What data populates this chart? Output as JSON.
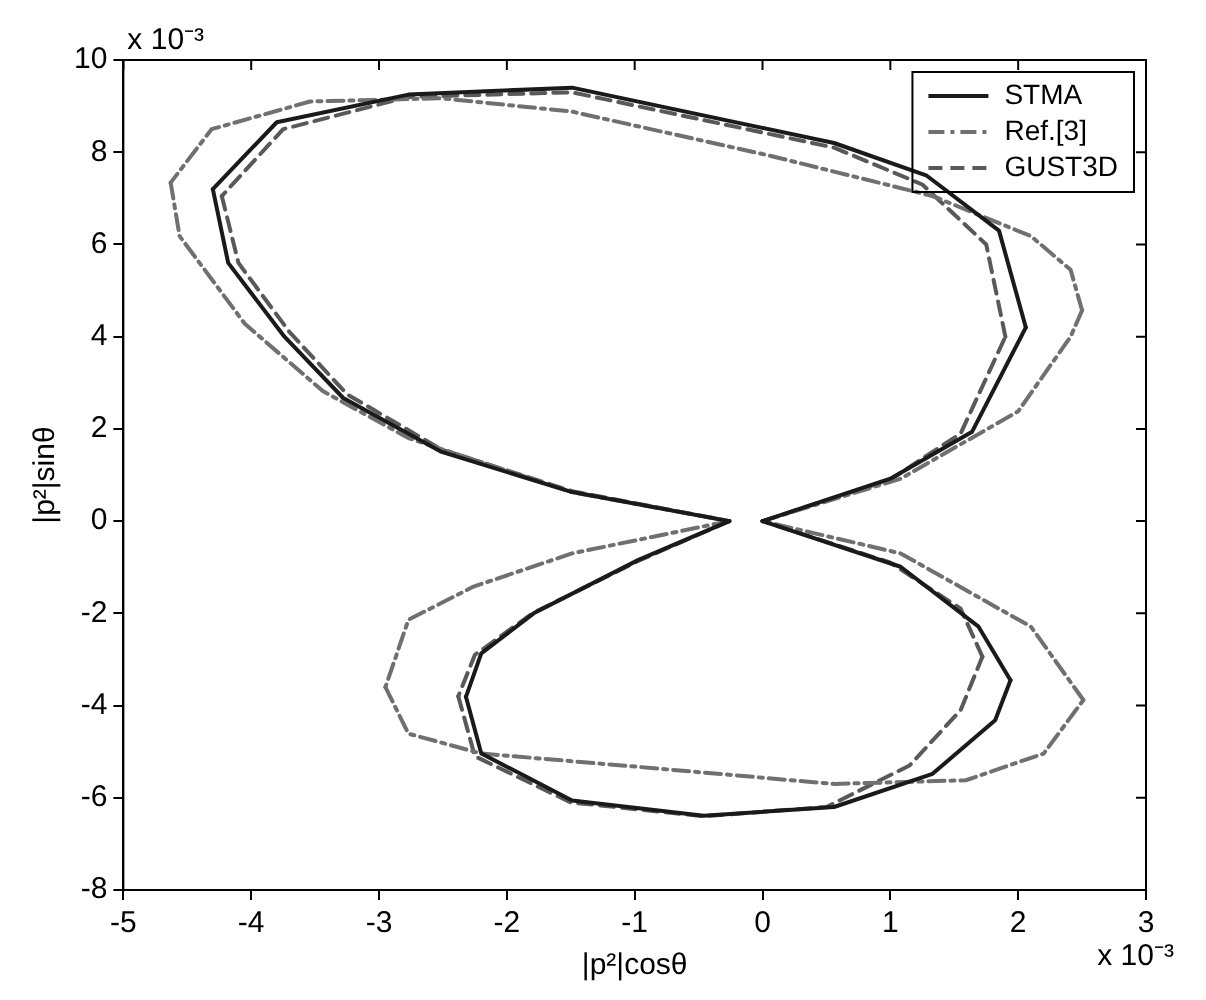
{
  "chart_data": {
    "type": "line",
    "xlabel": "|p²|cosθ",
    "ylabel": "|p²|sinθ",
    "annotations": [
      "x 10⁻³",
      "x 10⁻³"
    ],
    "xlim": [
      -5,
      3
    ],
    "xticks": [
      -5,
      -4,
      -3,
      -2,
      -1,
      0,
      1,
      2,
      3
    ],
    "ylim": [
      -8,
      10
    ],
    "yticks": [
      -8,
      -6,
      -4,
      -2,
      0,
      2,
      4,
      6,
      8,
      10
    ],
    "grid": false,
    "legend": "top right",
    "marker": "none",
    "series": [
      {
        "name": "STMA",
        "color": "#1a1a1a",
        "line_style": "solid",
        "x": [
          0,
          1.0,
          1.64,
          2.06
        ],
        "values": [
          0,
          0.92,
          1.94,
          4.2
        ]
      },
      {
        "color": "#1a1a1a",
        "line_style": "solid",
        "x": [
          2.06,
          1.85,
          1.28,
          0.56,
          -1.49,
          -2.77,
          -3.8,
          -4.3
        ],
        "values": [
          4.2,
          6.3,
          7.5,
          8.2,
          9.4,
          9.25,
          8.65,
          7.2
        ]
      },
      {
        "color": "#1a1a1a",
        "line_style": "solid",
        "x": [
          -4.3,
          -4.18,
          -3.74,
          -3.28,
          -2.51,
          -1.49,
          -0.26
        ],
        "values": [
          7.2,
          5.6,
          4.0,
          2.67,
          1.5,
          0.63,
          0
        ]
      },
      {
        "color": "#1a1a1a",
        "line_style": "solid",
        "x": [
          -0.26,
          -0.97,
          -1.79,
          -2.2,
          -2.32
        ],
        "values": [
          0,
          -0.84,
          -2.0,
          -2.87,
          -3.81
        ]
      },
      {
        "color": "#1a1a1a",
        "line_style": "solid",
        "x": [
          -2.32,
          -2.2,
          -1.49,
          -0.46,
          0.56,
          1.33,
          1.82,
          1.94
        ],
        "values": [
          -3.81,
          -5.04,
          -6.06,
          -6.39,
          -6.2,
          -5.48,
          -4.32,
          -3.45
        ]
      },
      {
        "color": "#1a1a1a",
        "line_style": "solid",
        "x": [
          1.94,
          1.69,
          1.08,
          0
        ],
        "values": [
          -3.45,
          -2.29,
          -0.99,
          0
        ]
      },
      {
        "name": "Ref.[3]",
        "color": "#707070",
        "line_style": "dashdot",
        "x": [
          0,
          1.08,
          2.0,
          2.41,
          2.5
        ],
        "values": [
          0,
          0.92,
          2.38,
          4.0,
          4.57
        ]
      },
      {
        "color": "#707070",
        "line_style": "dashdot",
        "x": [
          2.5,
          2.41,
          2.1,
          1.33,
          0.05,
          -1.49,
          -2.51,
          -3.54,
          -4.31,
          -4.63
        ],
        "values": [
          4.57,
          5.45,
          6.18,
          7.05,
          7.93,
          8.88,
          9.17,
          9.1,
          8.5,
          7.34
        ]
      },
      {
        "color": "#707070",
        "line_style": "dashdot",
        "x": [
          -4.63,
          -4.56,
          -4.05,
          -3.44,
          -2.77,
          -1.49,
          -0.26
        ],
        "values": [
          7.34,
          6.18,
          4.28,
          2.82,
          1.8,
          0.63,
          0
        ]
      },
      {
        "color": "#707070",
        "line_style": "dashdot",
        "x": [
          -0.26,
          -1.49,
          -2.26,
          -2.77,
          -2.95
        ],
        "values": [
          0,
          -0.7,
          -1.42,
          -2.14,
          -3.6
        ]
      },
      {
        "color": "#707070",
        "line_style": "dashdot",
        "x": [
          -2.95,
          -2.77,
          -2.2,
          -0.97,
          0.56,
          1.59,
          2.2,
          2.51
        ],
        "values": [
          -3.6,
          -4.61,
          -5.04,
          -5.33,
          -5.7,
          -5.62,
          -5.04,
          -3.88
        ]
      },
      {
        "color": "#707070",
        "line_style": "dashdot",
        "x": [
          2.51,
          2.1,
          1.08,
          0
        ],
        "values": [
          -3.88,
          -2.29,
          -0.7,
          0
        ]
      },
      {
        "name": "GUST3D",
        "color": "#595959",
        "line_style": "dashed",
        "x": [
          0,
          1.0,
          1.55,
          1.9
        ],
        "values": [
          0,
          0.9,
          1.9,
          4.0
        ]
      },
      {
        "color": "#595959",
        "line_style": "dashed",
        "x": [
          1.9,
          1.75,
          1.25,
          0.56,
          -1.49,
          -2.77,
          -3.75,
          -4.23
        ],
        "values": [
          4.0,
          6.0,
          7.3,
          8.1,
          9.3,
          9.2,
          8.5,
          7.05
        ]
      },
      {
        "color": "#595959",
        "line_style": "dashed",
        "x": [
          -4.23,
          -4.1,
          -3.7,
          -3.25,
          -2.51,
          -1.49,
          -0.26
        ],
        "values": [
          7.05,
          5.6,
          4.1,
          2.75,
          1.55,
          0.65,
          0
        ]
      },
      {
        "color": "#595959",
        "line_style": "dashed",
        "x": [
          -0.26,
          -0.97,
          -1.8,
          -2.25,
          -2.38
        ],
        "values": [
          0,
          -0.86,
          -2.0,
          -2.9,
          -3.8
        ]
      },
      {
        "color": "#595959",
        "line_style": "dashed",
        "x": [
          -2.38,
          -2.25,
          -1.5,
          -0.46,
          0.5,
          1.15,
          1.55,
          1.72
        ],
        "values": [
          -3.8,
          -5.1,
          -6.1,
          -6.4,
          -6.2,
          -5.3,
          -4.1,
          -2.94
        ]
      },
      {
        "color": "#595959",
        "line_style": "dashed",
        "x": [
          1.72,
          1.55,
          1.0,
          0
        ],
        "values": [
          -2.94,
          -1.9,
          -0.9,
          0
        ]
      }
    ]
  }
}
